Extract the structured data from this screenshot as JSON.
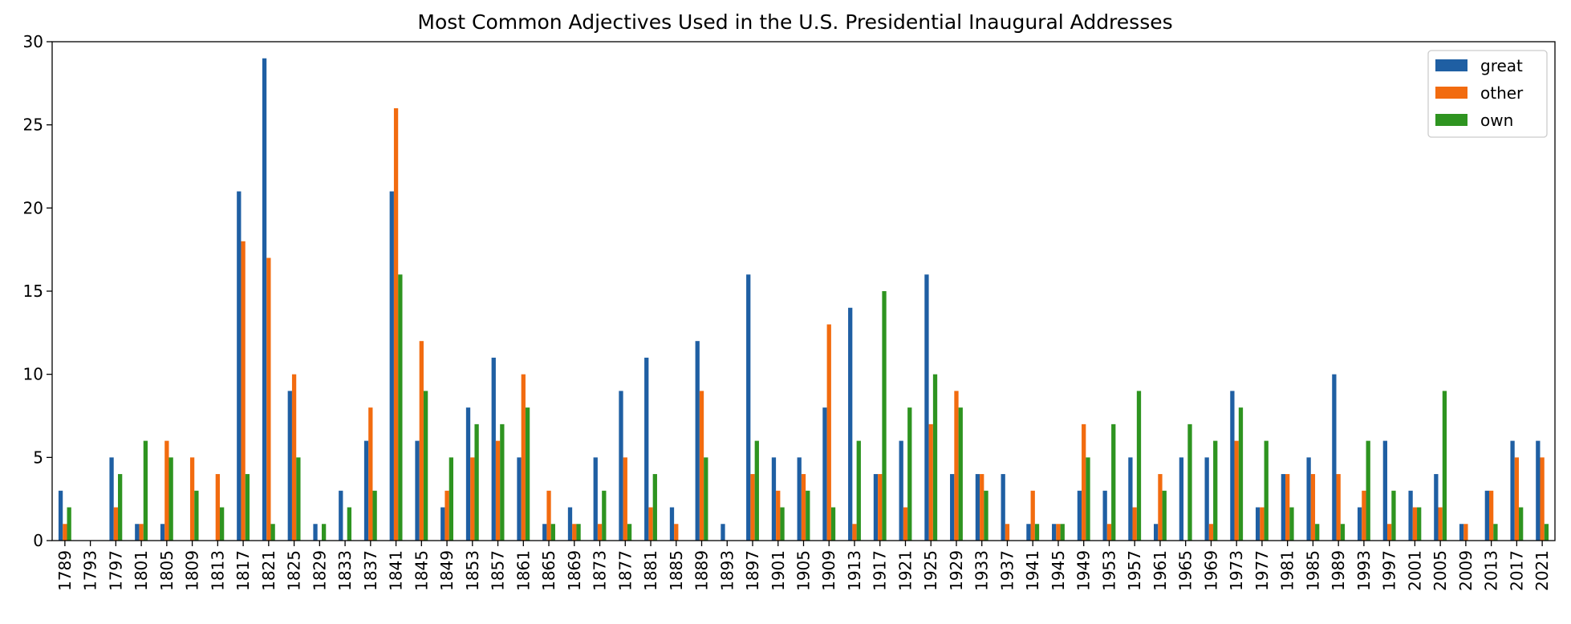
{
  "chart_data": {
    "type": "bar",
    "title": "Most Common Adjectives Used in the U.S. Presidential Inaugural Addresses",
    "xlabel": "",
    "ylabel": "",
    "ylim": [
      0,
      30
    ],
    "yticks": [
      "0",
      "5",
      "10",
      "15",
      "20",
      "25",
      "30"
    ],
    "grid": false,
    "legend_position": "top-right",
    "categories": [
      "1789",
      "1793",
      "1797",
      "1801",
      "1805",
      "1809",
      "1813",
      "1817",
      "1821",
      "1825",
      "1829",
      "1833",
      "1837",
      "1841",
      "1845",
      "1849",
      "1853",
      "1857",
      "1861",
      "1865",
      "1869",
      "1873",
      "1877",
      "1881",
      "1885",
      "1889",
      "1893",
      "1897",
      "1901",
      "1905",
      "1909",
      "1913",
      "1917",
      "1921",
      "1925",
      "1929",
      "1933",
      "1937",
      "1941",
      "1945",
      "1949",
      "1953",
      "1957",
      "1961",
      "1965",
      "1969",
      "1973",
      "1977",
      "1981",
      "1985",
      "1989",
      "1993",
      "1997",
      "2001",
      "2005",
      "2009",
      "2013",
      "2017",
      "2021"
    ],
    "series": [
      {
        "name": "great",
        "color": "#1f5fa3",
        "values": [
          3,
          0,
          5,
          1,
          1,
          0,
          0,
          21,
          29,
          9,
          1,
          3,
          6,
          21,
          6,
          2,
          8,
          11,
          5,
          1,
          2,
          5,
          9,
          11,
          2,
          12,
          1,
          16,
          5,
          5,
          8,
          14,
          4,
          6,
          16,
          4,
          4,
          4,
          1,
          1,
          3,
          3,
          5,
          1,
          5,
          5,
          9,
          2,
          4,
          5,
          10,
          2,
          6,
          3,
          4,
          1,
          3,
          6,
          6
        ]
      },
      {
        "name": "other",
        "color": "#f26b0f",
        "values": [
          1,
          0,
          2,
          1,
          6,
          5,
          4,
          18,
          17,
          10,
          0,
          0,
          8,
          26,
          12,
          3,
          5,
          6,
          10,
          3,
          1,
          1,
          5,
          2,
          1,
          9,
          0,
          4,
          3,
          4,
          13,
          1,
          4,
          2,
          7,
          9,
          4,
          1,
          3,
          1,
          7,
          1,
          2,
          4,
          0,
          1,
          6,
          2,
          4,
          4,
          4,
          3,
          1,
          2,
          2,
          1,
          3,
          5,
          5
        ]
      },
      {
        "name": "own",
        "color": "#2e9420",
        "values": [
          2,
          0,
          4,
          6,
          5,
          3,
          2,
          4,
          1,
          5,
          1,
          2,
          3,
          16,
          9,
          5,
          7,
          7,
          8,
          1,
          1,
          3,
          1,
          4,
          0,
          5,
          0,
          6,
          2,
          3,
          2,
          6,
          15,
          8,
          10,
          8,
          3,
          0,
          1,
          1,
          5,
          7,
          9,
          3,
          7,
          6,
          8,
          6,
          2,
          1,
          1,
          6,
          3,
          2,
          9,
          0,
          1,
          2,
          1
        ]
      }
    ]
  }
}
